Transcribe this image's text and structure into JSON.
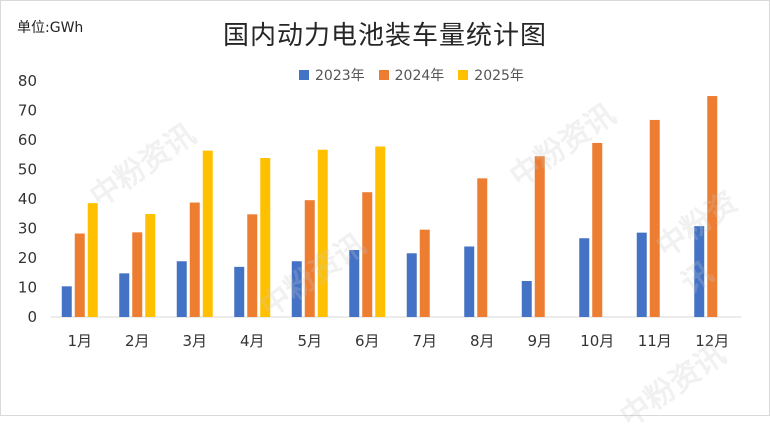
{
  "unit_label": "单位:GWh",
  "chart_data": {
    "type": "bar",
    "title": "国内动力电池装车量统计图",
    "xlabel": "",
    "ylabel": "",
    "ylim": [
      0,
      80
    ],
    "yticks": [
      0,
      10,
      20,
      30,
      40,
      50,
      60,
      70,
      80
    ],
    "grid": false,
    "legend_position": "top",
    "categories": [
      "1月",
      "2月",
      "3月",
      "4月",
      "5月",
      "6月",
      "7月",
      "8月",
      "9月",
      "10月",
      "11月",
      "12月"
    ],
    "series": [
      {
        "name": "2023年",
        "color": "#4472C4",
        "values": [
          10.4,
          14.8,
          18.9,
          17.0,
          18.9,
          22.7,
          21.6,
          23.9,
          12.2,
          26.7,
          28.6,
          30.8
        ]
      },
      {
        "name": "2024年",
        "color": "#ED7D31",
        "values": [
          28.3,
          28.7,
          38.8,
          34.8,
          39.6,
          42.3,
          29.6,
          47.0,
          54.5,
          59.0,
          66.8,
          74.9
        ]
      },
      {
        "name": "2025年",
        "color": "#FFC000",
        "values": [
          38.6,
          34.9,
          56.4,
          53.9,
          56.7,
          57.8,
          null,
          null,
          null,
          null,
          null,
          null
        ]
      }
    ]
  },
  "watermark_text": "中粉资讯"
}
